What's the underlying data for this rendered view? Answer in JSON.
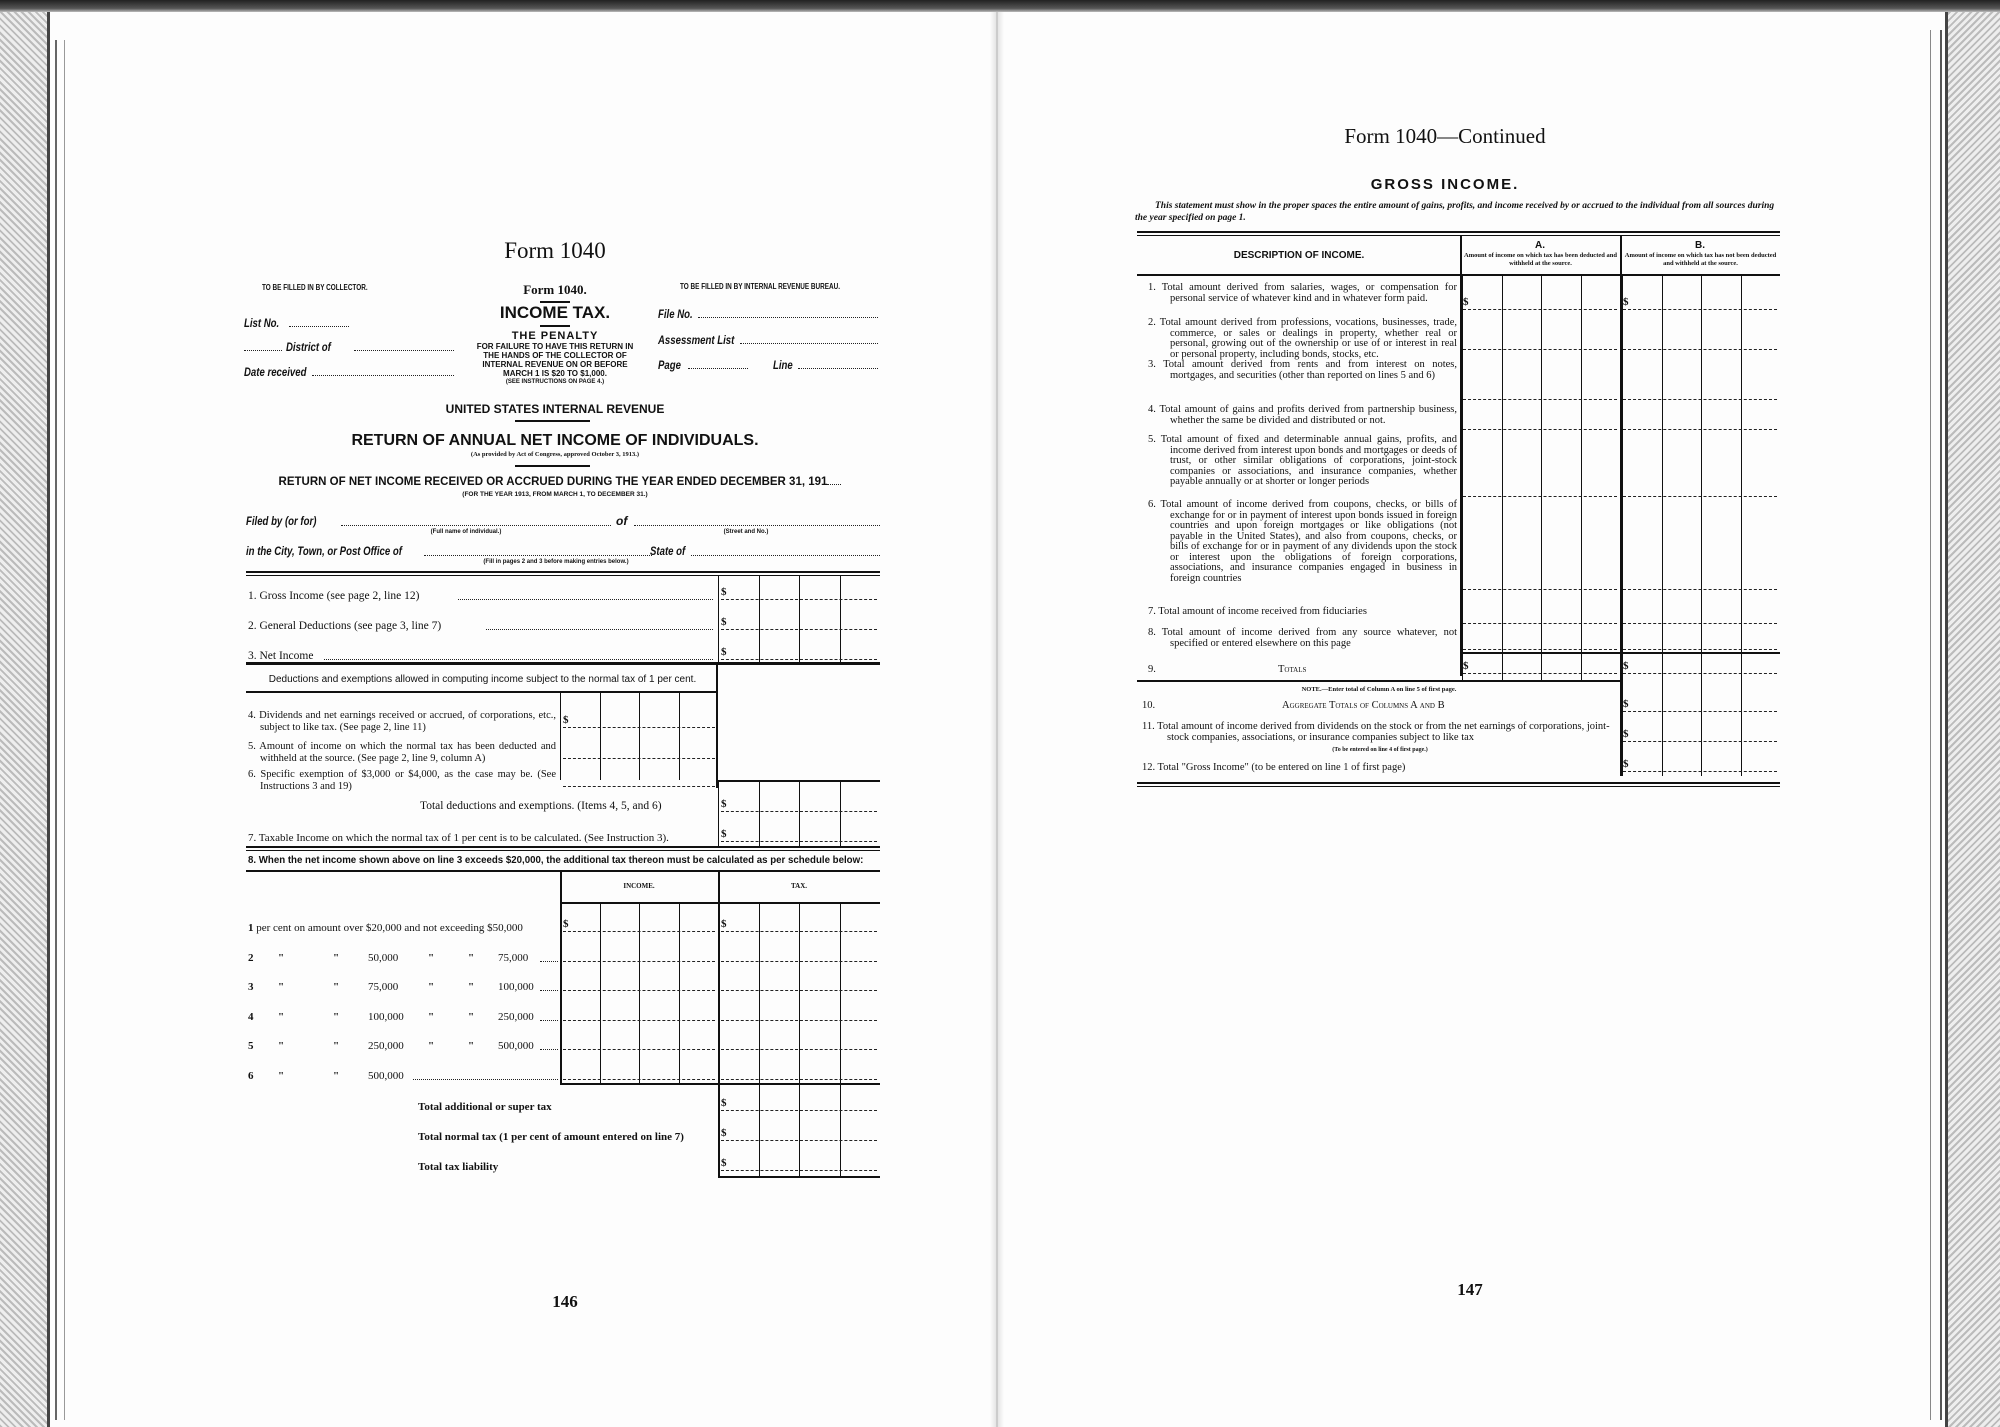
{
  "left_page": {
    "form_title": "Form 1040",
    "collector_header": "TO BE FILLED IN BY COLLECTOR.",
    "bureau_header": "TO BE FILLED IN BY INTERNAL REVENUE BUREAU.",
    "collector_fields": [
      "List No.",
      "District of",
      "Date received"
    ],
    "bureau_fields": [
      "File No.",
      "Assessment List",
      "Page",
      "Line"
    ],
    "form_label": "Form 1040.",
    "income_tax": "INCOME TAX.",
    "penalty_title": "THE PENALTY",
    "penalty_text": [
      "FOR FAILURE TO HAVE THIS RETURN IN",
      "THE HANDS OF THE COLLECTOR OF",
      "INTERNAL REVENUE ON OR BEFORE",
      "MARCH 1 IS $20 TO $1,000."
    ],
    "penalty_note": "(SEE INSTRUCTIONS ON PAGE 4.)",
    "agency": "UNITED STATES INTERNAL REVENUE",
    "return_title": "RETURN OF ANNUAL NET INCOME OF INDIVIDUALS.",
    "act_note": "(As provided by Act of Congress, approved October 3, 1913.)",
    "return_period": "RETURN OF NET INCOME RECEIVED OR ACCRUED DURING THE YEAR ENDED DECEMBER 31, 191",
    "period_note": "(FOR THE YEAR 1913, FROM MARCH 1, TO DECEMBER 31.)",
    "filed_by": "Filed by (or for)",
    "full_name_note": "(Full name of individual.)",
    "of_label": "of",
    "street_note": "(Street and No.)",
    "city_label": "in the City, Town, or Post Office of",
    "state_label": "State of",
    "fill_note": "(Fill in pages 2 and 3 before making entries below.)",
    "lines": [
      {
        "num": "1.",
        "text": "Gross Income (see page 2, line 12)"
      },
      {
        "num": "2.",
        "text": "General Deductions (see page 3, line 7)"
      },
      {
        "num": "3.",
        "text": "Net Income"
      }
    ],
    "deductions_header": "Deductions and exemptions allowed in computing income subject to the normal tax of 1 per cent.",
    "deductions": [
      {
        "num": "4.",
        "text": "Dividends and net earnings received or accrued, of corporations, etc., subject to like tax. (See page 2, line 11)"
      },
      {
        "num": "5.",
        "text": "Amount of income on which the normal tax has been deducted and withheld at the source. (See page 2, line 9, column A)"
      },
      {
        "num": "6.",
        "text": "Specific exemption of $3,000 or $4,000, as the case may be. (See Instructions 3 and 19)"
      }
    ],
    "total_deductions": "Total deductions and exemptions. (Items 4, 5, and 6)",
    "taxable_income": {
      "num": "7.",
      "text": "Taxable Income on which the normal tax of 1 per cent is to be calculated. (See Instruction 3)."
    },
    "schedule_intro": "8. When the net income shown above on line 3 exceeds $20,000, the additional tax thereon must be calculated as per schedule below:",
    "schedule_columns": [
      "INCOME.",
      "TAX."
    ],
    "schedule_rows": [
      {
        "rate": "1 per cent on amount over $20,000 and not exceeding $50,000"
      },
      {
        "rate": "2",
        "from": "50,000",
        "to": "75,000"
      },
      {
        "rate": "3",
        "from": "75,000",
        "to": "100,000"
      },
      {
        "rate": "4",
        "from": "100,000",
        "to": "250,000"
      },
      {
        "rate": "5",
        "from": "250,000",
        "to": "500,000"
      },
      {
        "rate": "6",
        "from": "500,000",
        "to": ""
      }
    ],
    "ditto": "\"",
    "schedule_totals": [
      "Total additional or super tax",
      "Total normal tax (1 per cent of amount entered on line 7)",
      "Total tax liability"
    ],
    "dollar": "$",
    "page_number": "146"
  },
  "right_page": {
    "title": "Form 1040—Continued",
    "section_title": "GROSS INCOME.",
    "statement": "This statement must show in the proper spaces the entire amount of gains, profits, and income received by or accrued to the individual from all sources during the year specified on page 1.",
    "description_header": "DESCRIPTION OF INCOME.",
    "column_a": {
      "letter": "A.",
      "text": "Amount of income on which tax has been deducted and withheld at the source."
    },
    "column_b": {
      "letter": "B.",
      "text": "Amount of income on which tax has not been deducted and withheld at the source."
    },
    "rows": [
      {
        "num": "1.",
        "text": "Total amount derived from salaries, wages, or compensation for personal service of whatever kind and in whatever form paid."
      },
      {
        "num": "2.",
        "text": "Total amount derived from professions, vocations, businesses, trade, commerce, or sales or dealings in property, whether real or personal, growing out of the ownership or use of or interest in real or personal property, including bonds, stocks, etc."
      },
      {
        "num": "3.",
        "text": "Total amount derived from rents and from interest on notes, mortgages, and securities (other than reported on lines 5 and 6)"
      },
      {
        "num": "4.",
        "text": "Total amount of gains and profits derived from partnership business, whether the same be divided and distributed or not."
      },
      {
        "num": "5.",
        "text": "Total amount of fixed and determinable annual gains, profits, and income derived from interest upon bonds and mortgages or deeds of trust, or other similar obligations of corporations, joint-stock companies or associations, and insurance companies, whether payable annually or at shorter or longer periods"
      },
      {
        "num": "6.",
        "text": "Total amount of income derived from coupons, checks, or bills of exchange for or in payment of interest upon bonds issued in foreign countries and upon foreign mortgages or like obligations (not payable in the United States), and also from coupons, checks, or bills of exchange for or in payment of any dividends upon the stock or interest upon the obligations of foreign corporations, associations, and insurance companies engaged in business in foreign countries"
      },
      {
        "num": "7.",
        "text": "Total amount of income received from fiduciaries"
      },
      {
        "num": "8.",
        "text": "Total amount of income derived from any source whatever, not specified or entered elsewhere on this page"
      }
    ],
    "totals": {
      "num": "9.",
      "text": "Totals"
    },
    "note": "NOTE.—Enter total of Column A on line 5 of first page.",
    "aggregate": {
      "num": "10.",
      "text": "Aggregate Totals of Columns A and B"
    },
    "dividends": {
      "num": "11.",
      "text": "Total amount of income derived from dividends on the stock or from the net earnings of corporations, joint-stock companies, associations, or insurance companies subject to like tax",
      "note": "(To be entered on line 4 of first page.)"
    },
    "gross_total": {
      "num": "12.",
      "text": "Total \"Gross Income\" (to be entered on line 1 of first page)"
    },
    "dollar": "$",
    "page_number": "147"
  }
}
